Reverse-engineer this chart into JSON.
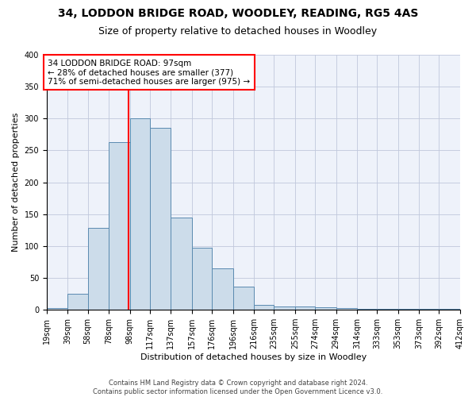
{
  "title1": "34, LODDON BRIDGE ROAD, WOODLEY, READING, RG5 4AS",
  "title2": "Size of property relative to detached houses in Woodley",
  "xlabel": "Distribution of detached houses by size in Woodley",
  "ylabel": "Number of detached properties",
  "bin_edges": [
    19,
    39,
    58,
    78,
    98,
    117,
    137,
    157,
    176,
    196,
    216,
    235,
    255,
    274,
    294,
    314,
    333,
    353,
    373,
    392,
    412
  ],
  "bar_heights": [
    3,
    25,
    128,
    263,
    300,
    285,
    145,
    98,
    65,
    37,
    8,
    5,
    5,
    4,
    3,
    2,
    2,
    2,
    2,
    2
  ],
  "tick_labels": [
    "19sqm",
    "39sqm",
    "58sqm",
    "78sqm",
    "98sqm",
    "117sqm",
    "137sqm",
    "157sqm",
    "176sqm",
    "196sqm",
    "216sqm",
    "235sqm",
    "255sqm",
    "274sqm",
    "294sqm",
    "314sqm",
    "333sqm",
    "353sqm",
    "373sqm",
    "392sqm",
    "412sqm"
  ],
  "bar_color": "#ccdcea",
  "bar_edge_color": "#5a8ab0",
  "grid_color": "#c0c8dc",
  "background_color": "#eef2fa",
  "red_line_x": 97,
  "annotation_text": "34 LODDON BRIDGE ROAD: 97sqm\n← 28% of detached houses are smaller (377)\n71% of semi-detached houses are larger (975) →",
  "footer": "Contains HM Land Registry data © Crown copyright and database right 2024.\nContains public sector information licensed under the Open Government Licence v3.0.",
  "ylim": [
    0,
    400
  ],
  "yticks": [
    0,
    50,
    100,
    150,
    200,
    250,
    300,
    350,
    400
  ],
  "title1_fontsize": 10,
  "title2_fontsize": 9,
  "ylabel_fontsize": 8,
  "xlabel_fontsize": 8,
  "tick_fontsize": 7,
  "footer_fontsize": 6,
  "annotation_fontsize": 7.5
}
